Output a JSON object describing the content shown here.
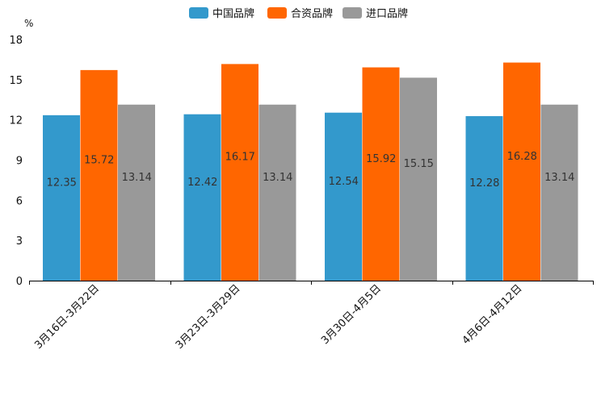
{
  "chart_data": {
    "type": "bar",
    "title": "",
    "xlabel": "",
    "ylabel": "%",
    "ylim": [
      0,
      18
    ],
    "yticks": [
      0,
      3,
      6,
      9,
      12,
      15,
      18
    ],
    "grid": false,
    "legend_position": "top-center",
    "categories": [
      "3月16日-3月22日",
      "3月23日-3月29日",
      "3月30日-4月5日",
      "4月6日-4月12日"
    ],
    "series": [
      {
        "name": "中国品牌",
        "color": "#3399CC",
        "values": [
          12.35,
          12.42,
          12.54,
          12.28
        ]
      },
      {
        "name": "合资品牌",
        "color": "#FF6600",
        "values": [
          15.72,
          16.17,
          15.92,
          16.28
        ]
      },
      {
        "name": "进口品牌",
        "color": "#999999",
        "values": [
          13.14,
          13.14,
          15.15,
          13.14
        ]
      }
    ]
  }
}
